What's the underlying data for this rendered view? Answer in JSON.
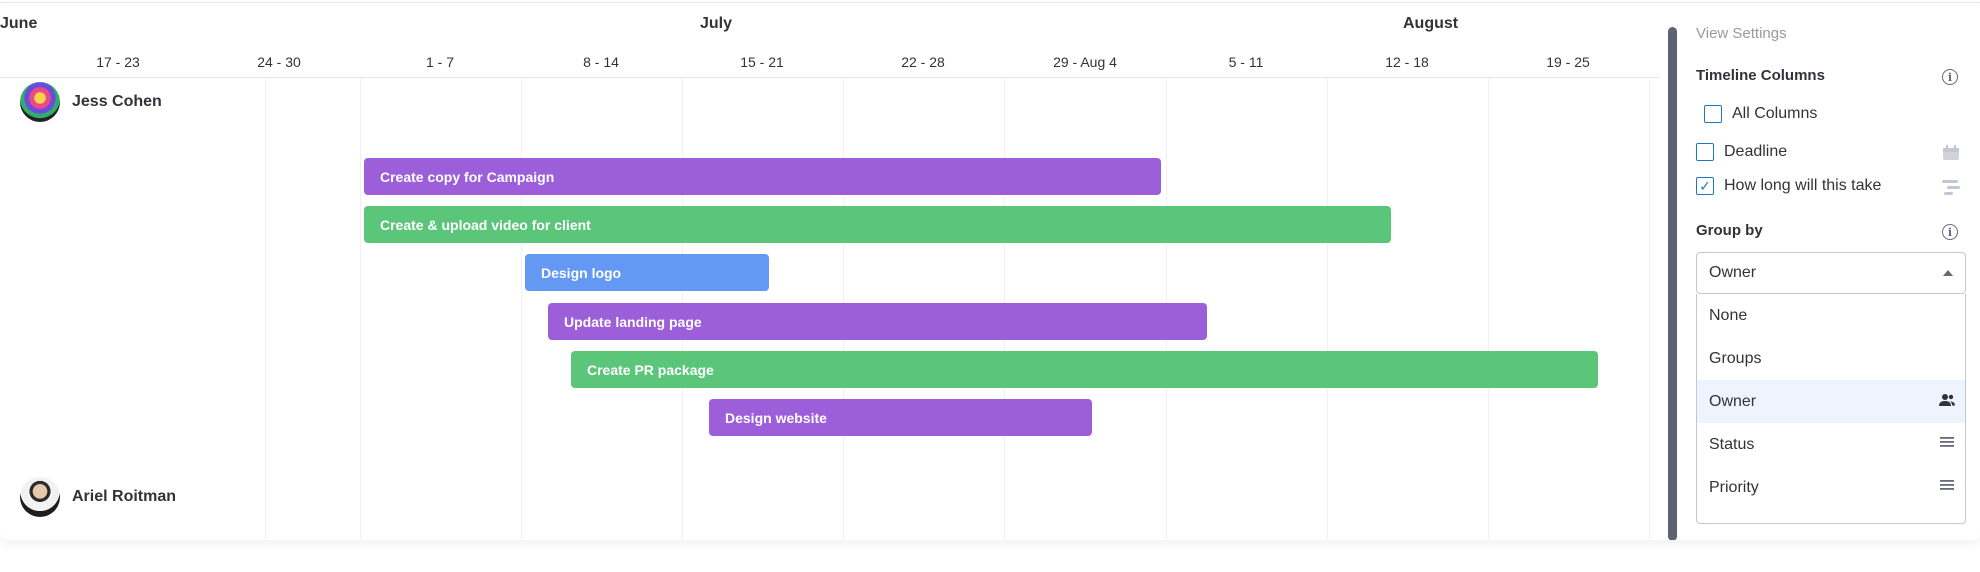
{
  "timeline": {
    "months": [
      "June",
      "July",
      "August"
    ],
    "weeks": [
      "17 - 23",
      "24 - 30",
      "1 - 7",
      "8 - 14",
      "15 - 21",
      "22 - 28",
      "29 - Aug 4",
      "5 - 11",
      "12 - 18",
      "19 - 25"
    ],
    "owners": [
      {
        "name": "Jess Cohen",
        "avatar_icon": "avatar-icon"
      },
      {
        "name": "Ariel Roitman",
        "avatar_icon": "avatar-icon"
      }
    ],
    "tasks": [
      {
        "label": "Create copy for Campaign",
        "color": "#9c5fd9"
      },
      {
        "label": "Create & upload video for client",
        "color": "#5bc57a"
      },
      {
        "label": "Design logo",
        "color": "#6399f2"
      },
      {
        "label": "Update landing page",
        "color": "#9c5fd9"
      },
      {
        "label": "Create PR package",
        "color": "#5bc57a"
      },
      {
        "label": "Design website",
        "color": "#9c5fd9"
      }
    ]
  },
  "settings": {
    "title": "View Settings",
    "timeline_columns": {
      "label": "Timeline Columns",
      "all_columns": {
        "label": "All Columns",
        "checked": false
      },
      "columns": [
        {
          "label": "Deadline",
          "checked": false,
          "icon": "calendar-icon"
        },
        {
          "label": "How long will this take",
          "checked": true,
          "icon": "timeline-icon"
        }
      ]
    },
    "group_by": {
      "label": "Group by",
      "selected": "Owner",
      "options": [
        {
          "label": "None",
          "icon": ""
        },
        {
          "label": "Groups",
          "icon": ""
        },
        {
          "label": "Owner",
          "icon": "people-icon"
        },
        {
          "label": "Status",
          "icon": "list-icon"
        },
        {
          "label": "Priority",
          "icon": "list-icon"
        }
      ]
    }
  }
}
